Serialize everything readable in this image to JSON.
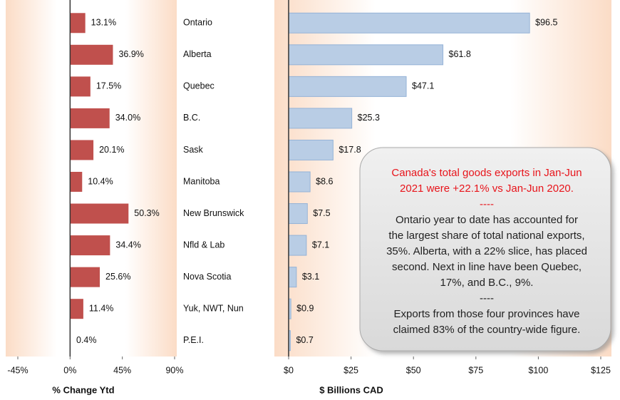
{
  "chart_data": [
    {
      "type": "hbar",
      "xlabel": "% Change Ytd",
      "categories": [
        "Ontario",
        "Alberta",
        "Quebec",
        "B.C.",
        "Sask",
        "Manitoba",
        "New Brunswick",
        "Nfld & Lab",
        "Nova Scotia",
        "Yuk, NWT, Nun",
        "P.E.I."
      ],
      "values": [
        13.1,
        36.9,
        17.5,
        34.0,
        20.1,
        10.4,
        50.3,
        34.4,
        25.6,
        11.4,
        0.4
      ],
      "value_labels": [
        "13.1%",
        "36.9%",
        "17.5%",
        "34.0%",
        "20.1%",
        "10.4%",
        "50.3%",
        "34.4%",
        "25.6%",
        "11.4%",
        "0.4%"
      ],
      "color": "#c0504d",
      "xlim": [
        -45,
        90
      ],
      "xticks": [
        {
          "value": -45,
          "label": "-45%"
        },
        {
          "value": 0,
          "label": "0%"
        },
        {
          "value": 45,
          "label": "45%"
        },
        {
          "value": 90,
          "label": "90%"
        }
      ]
    },
    {
      "type": "hbar",
      "xlabel": "$ Billions CAD",
      "values": [
        96.5,
        61.8,
        47.1,
        25.3,
        17.8,
        8.6,
        7.5,
        7.1,
        3.1,
        0.9,
        0.7
      ],
      "value_labels": [
        "$96.5",
        "$61.8",
        "$47.1",
        "$25.3",
        "$17.8",
        "$8.6",
        "$7.5",
        "$7.1",
        "$3.1",
        "$0.9",
        "$0.7"
      ],
      "color": "#b9cde5",
      "xlim": [
        0,
        125
      ],
      "xticks": [
        {
          "value": 0,
          "label": "$0"
        },
        {
          "value": 25,
          "label": "$25"
        },
        {
          "value": 50,
          "label": "$50"
        },
        {
          "value": 75,
          "label": "$75"
        },
        {
          "value": 100,
          "label": "$100"
        },
        {
          "value": 125,
          "label": "$125"
        }
      ]
    }
  ],
  "annotation": [
    {
      "color": "#e8141b",
      "lines": [
        "Canada's total goods exports in Jan-Jun",
        "2021 were +22.1% vs Jan-Jun 2020.",
        "----"
      ]
    },
    {
      "color": "#222222",
      "lines": [
        "Ontario year to date has accounted for",
        "the largest share of total national exports,",
        "35%. Alberta, with a 22% slice, has placed",
        "second. Next in line have been Quebec,",
        "17%, and B.C., 9%.",
        "----",
        "Exports from those four provinces have",
        "claimed 83% of the country-wide figure."
      ]
    }
  ]
}
